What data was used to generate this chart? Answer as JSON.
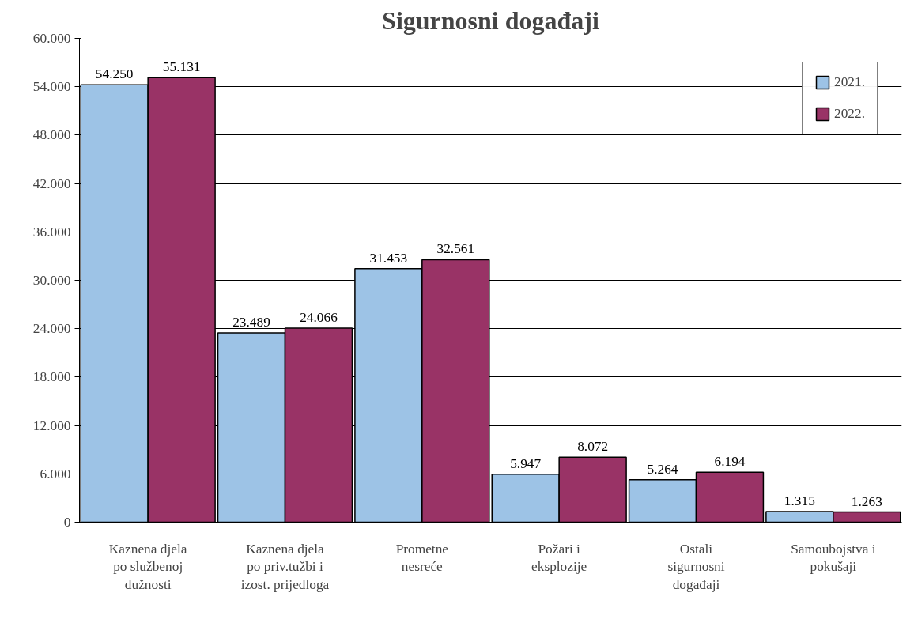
{
  "chart_data": {
    "type": "bar",
    "title": "Sigurnosni događaji",
    "categories": [
      "Kaznena djela\npo službenoj\ndužnosti",
      "Kaznena djela\npo priv.tužbi i\nizost. prijedloga",
      "Prometne\nnesreće",
      "Požari i\neksplozije",
      "Ostali\nsigurnosni\ndogađaji",
      "Samoubojstva i\npokušaji"
    ],
    "series": [
      {
        "name": "2021.",
        "color": "#9dc3e6",
        "values": [
          54250,
          23489,
          31453,
          5947,
          5264,
          1315
        ],
        "value_labels": [
          "54.250",
          "23.489",
          "31.453",
          "5.947",
          "5.264",
          "1.315"
        ]
      },
      {
        "name": "2022.",
        "color": "#993366",
        "values": [
          55131,
          24066,
          32561,
          8072,
          6194,
          1263
        ],
        "value_labels": [
          "55.131",
          "24.066",
          "32.561",
          "8.072",
          "6.194",
          "1.263"
        ]
      }
    ],
    "ylim": [
      0,
      60000
    ],
    "yticks": [
      {
        "value": 0,
        "label": "0"
      },
      {
        "value": 6000,
        "label": "6.000"
      },
      {
        "value": 12000,
        "label": "12.000"
      },
      {
        "value": 18000,
        "label": "18.000"
      },
      {
        "value": 24000,
        "label": "24.000"
      },
      {
        "value": 30000,
        "label": "30.000"
      },
      {
        "value": 36000,
        "label": "36.000"
      },
      {
        "value": 42000,
        "label": "42.000"
      },
      {
        "value": 48000,
        "label": "48.000"
      },
      {
        "value": 54000,
        "label": "54.000"
      },
      {
        "value": 60000,
        "label": "60.000"
      }
    ],
    "grid": "y",
    "legend": "top right"
  }
}
